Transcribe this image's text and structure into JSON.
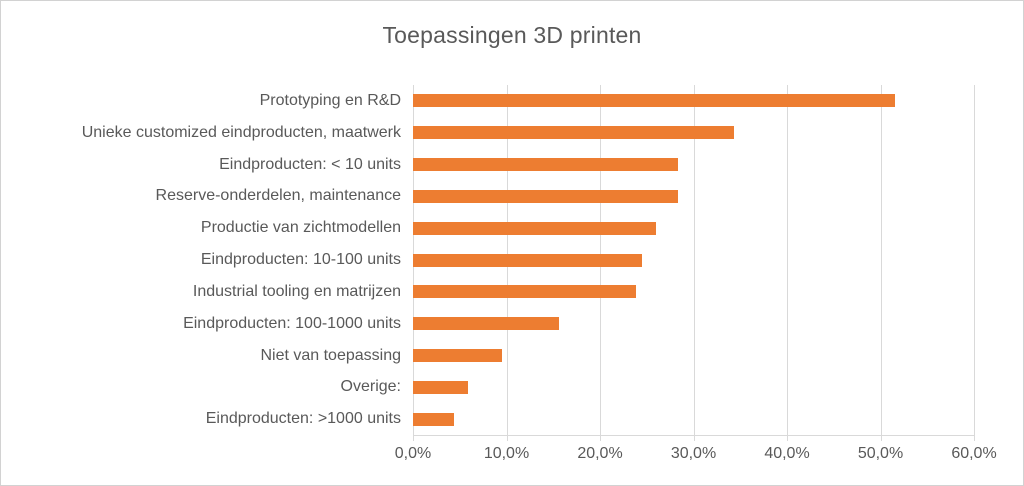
{
  "chart_data": {
    "type": "bar",
    "orientation": "horizontal",
    "title": "Toepassingen 3D printen",
    "categories": [
      "Prototyping en R&D",
      "Unieke customized eindproducten, maatwerk",
      "Eindproducten: < 10 units",
      "Reserve-onderdelen, maintenance",
      "Productie van zichtmodellen",
      "Eindproducten: 10-100 units",
      "Industrial tooling en matrijzen",
      "Eindproducten: 100-1000 units",
      "Niet van toepassing",
      "Overige:",
      "Eindproducten: >1000 units"
    ],
    "values": [
      51.5,
      34.3,
      28.3,
      28.3,
      26.0,
      24.5,
      23.8,
      15.6,
      9.5,
      5.9,
      4.4
    ],
    "unit": "%",
    "x_axis": {
      "min": 0,
      "max": 60,
      "tick_step": 10,
      "tick_labels": [
        "0,0%",
        "10,0%",
        "20,0%",
        "30,0%",
        "40,0%",
        "50,0%",
        "60,0%"
      ]
    },
    "grid": true,
    "legend": false,
    "bar_color": "#ED7D31",
    "colors": {
      "bar": "#ED7D31",
      "text": "#595959",
      "gridline": "#D9D9D9",
      "border": "#D2D2D2"
    }
  }
}
